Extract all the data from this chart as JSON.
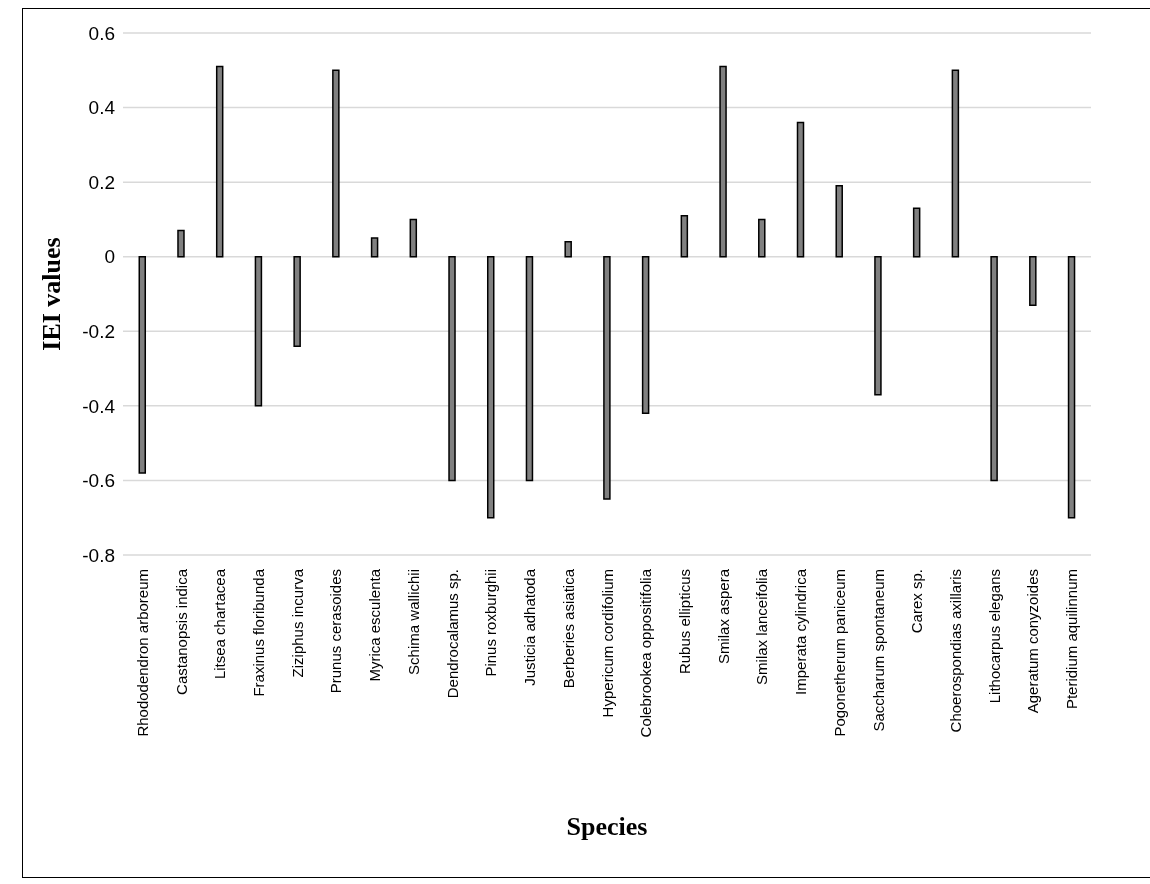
{
  "chart_data": {
    "type": "bar",
    "xlabel": "Species",
    "ylabel": "IEI values",
    "categories": [
      "Rhododendron arboreum",
      "Castanopsis indica",
      "Litsea chartacea",
      "Fraxinus floribunda",
      "Ziziphus incurva",
      "Prunus cerasoides",
      "Myrica esculenta",
      "Schima wallichii",
      "Dendrocalamus sp.",
      "Pinus roxburghii",
      "Justicia adhatoda",
      "Berberies asiatica",
      "Hypericum cordifolium",
      "Colebrookea oppositifolia",
      "Rubus ellipticus",
      "Smilax aspera",
      "Smilax lanceifolia",
      "Imperata cylindrica",
      "Pogonetherum paniceum",
      "Saccharum spontaneum",
      "Carex sp.",
      "Choerospondias axillaris",
      "Lithocarpus elegans",
      "Ageratum conyzoides",
      "Pteridium aquilinnum"
    ],
    "values": [
      -0.58,
      0.07,
      0.51,
      -0.4,
      -0.24,
      0.5,
      0.05,
      0.1,
      -0.6,
      -0.7,
      -0.6,
      0.04,
      -0.65,
      -0.42,
      0.11,
      0.51,
      0.1,
      0.36,
      0.19,
      -0.37,
      0.13,
      0.5,
      -0.6,
      -0.13,
      -0.7
    ],
    "color": "#808080",
    "ylim": [
      -0.8,
      0.6
    ],
    "yticks": [
      -0.8,
      -0.6,
      -0.4,
      -0.2,
      0,
      0.2,
      0.4,
      0.6
    ],
    "grid": "y",
    "legend": false
  }
}
